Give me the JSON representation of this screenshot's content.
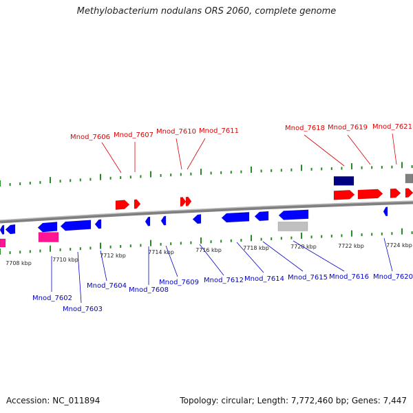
{
  "title": "Methylobacterium nodulans ORS 2060, complete genome",
  "footer": {
    "accession": "Accession: NC_011894",
    "summary": "Topology: circular; Length: 7,772,460 bp; Genes: 7,447"
  },
  "colors": {
    "forward_gene": "#ff0000",
    "reverse_gene": "#0000ff",
    "forward_label": "#dd0000",
    "reverse_label": "#0000cc",
    "rna_gene": "#ff1493",
    "pseudo_gene": "#c0c0c0",
    "misc_gene": "#000080",
    "backbone": "#808080",
    "tick": "#228b22"
  },
  "scale": {
    "unit": "kbp",
    "labels": [
      "7708 kbp",
      "7710 kbp",
      "7712 kbp",
      "7714 kbp",
      "7716 kbp",
      "7718 kbp",
      "7720 kbp",
      "7722 kbp",
      "7724 kbp"
    ]
  },
  "forward_gene_labels": [
    "Mnod_7606",
    "Mnod_7607",
    "Mnod_7610",
    "Mnod_7611",
    "Mnod_7618",
    "Mnod_7619",
    "Mnod_7621"
  ],
  "reverse_gene_labels": [
    "Mnod_7602",
    "Mnod_7603",
    "Mnod_7604",
    "Mnod_7608",
    "Mnod_7609",
    "Mnod_7612",
    "Mnod_7614",
    "Mnod_7615",
    "Mnod_7616",
    "Mnod_7620"
  ]
}
